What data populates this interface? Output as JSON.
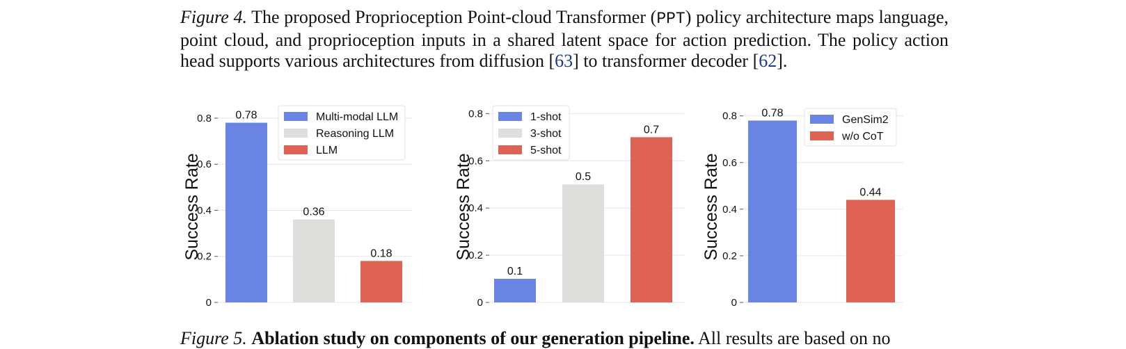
{
  "caption_top": {
    "label": "Figure 4.",
    "text_a": " The proposed Proprioception Point-cloud Transformer (",
    "code": "PPT",
    "text_b": ") policy architecture maps language, point cloud, and proprioception inputs in a shared latent space for action prediction. The policy action head supports various architectures from diffusion [",
    "cite1": "63",
    "text_c": "] to transformer decoder [",
    "cite2": "62",
    "text_d": "]."
  },
  "caption_bottom": {
    "label": "Figure 5.",
    "bold": "Ablation study on components of our generation pipeline.",
    "text": " All results are based on no"
  },
  "colors": {
    "blue": "#6a84e4",
    "gray": "#dededc",
    "red": "#de6354"
  },
  "chart_data": [
    {
      "type": "bar",
      "categories": [
        "Multi-modal LLM",
        "Reasoning LLM",
        "LLM"
      ],
      "values": [
        0.78,
        0.36,
        0.18
      ],
      "value_labels": [
        "0.78",
        "0.36",
        "0.18"
      ],
      "series_colors": [
        "#6a84e4",
        "#dededc",
        "#de6354"
      ],
      "legend": [
        "Multi-modal LLM",
        "Reasoning LLM",
        "LLM"
      ],
      "legend_position": "top-right",
      "ylabel": "Success Rate",
      "ylim": [
        0,
        0.83
      ],
      "yticks": [
        0,
        0.2,
        0.4,
        0.6,
        0.8
      ],
      "ytick_labels": [
        "0",
        "0.2",
        "0.4",
        "0.6",
        "0.8"
      ],
      "grid": "horizontal"
    },
    {
      "type": "bar",
      "categories": [
        "1-shot",
        "3-shot",
        "5-shot"
      ],
      "values": [
        0.1,
        0.5,
        0.7
      ],
      "value_labels": [
        "0.1",
        "0.5",
        "0.7"
      ],
      "series_colors": [
        "#6a84e4",
        "#dededc",
        "#de6354"
      ],
      "legend": [
        "1-shot",
        "3-shot",
        "5-shot"
      ],
      "legend_position": "top-left",
      "ylabel": "Success Rate",
      "ylim": [
        0,
        0.81
      ],
      "yticks": [
        0,
        0.2,
        0.4,
        0.6,
        0.8
      ],
      "ytick_labels": [
        "0",
        "0.2",
        "0.4",
        "0.6",
        "0.8"
      ],
      "grid": "horizontal"
    },
    {
      "type": "bar",
      "categories": [
        "GenSim2",
        "w/o CoT"
      ],
      "values": [
        0.78,
        0.44
      ],
      "value_labels": [
        "0.78",
        "0.44"
      ],
      "series_colors": [
        "#6a84e4",
        "#de6354"
      ],
      "legend": [
        "GenSim2",
        "w/o CoT"
      ],
      "legend_position": "top-right",
      "ylabel": "Success Rate",
      "ylim": [
        0,
        0.82
      ],
      "yticks": [
        0,
        0.2,
        0.4,
        0.6,
        0.8
      ],
      "ytick_labels": [
        "0",
        "0.2",
        "0.4",
        "0.6",
        "0.8"
      ],
      "grid": "horizontal"
    }
  ]
}
